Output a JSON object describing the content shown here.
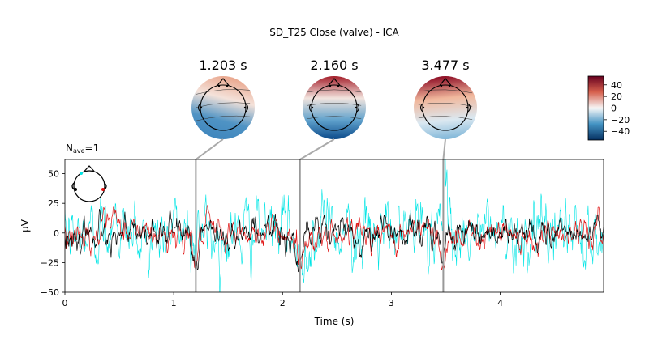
{
  "chart_data": {
    "type": "line",
    "title": "SD_T25 Close (valve) - ICA",
    "xlabel": "Time (s)",
    "ylabel": "μV",
    "xlim": [
      0,
      4.95
    ],
    "ylim": [
      -50,
      62
    ],
    "x_ticks": [
      0,
      1,
      2,
      3,
      4
    ],
    "y_ticks": [
      -50,
      -25,
      0,
      25,
      50
    ],
    "nave_label": "N",
    "nave_sub": "ave",
    "nave_value": "=1",
    "series_colors": {
      "cyan": "#00e5e5",
      "red": "#e01010",
      "black": "#000000"
    },
    "time_marks": [
      {
        "t": 1.203,
        "label": "1.203 s"
      },
      {
        "t": 2.16,
        "label": "2.160 s"
      },
      {
        "t": 3.477,
        "label": "3.477 s"
      }
    ],
    "events": [
      {
        "t": 1.203,
        "cyan": -18,
        "red": -28,
        "black": -25,
        "width": 0.035
      },
      {
        "t": 2.16,
        "cyan": -30,
        "red": -25,
        "black": -15,
        "width": 0.04
      },
      {
        "t": 3.477,
        "cyan": 52,
        "red": -30,
        "black": -12,
        "width": 0.03
      },
      {
        "t": 1.22,
        "cyan": 42,
        "red": 0,
        "black": 0,
        "width": 0.01
      },
      {
        "t": 0.45,
        "cyan": 25,
        "red": 12,
        "black": 10,
        "width": 0.02
      },
      {
        "t": 2.42,
        "cyan": 30,
        "red": -10,
        "black": -8,
        "width": 0.02
      }
    ],
    "colorbar": {
      "min": -55,
      "max": 55,
      "ticks": [
        40,
        20,
        0,
        -20,
        -40
      ],
      "tick_labels": [
        "40",
        "20",
        "0",
        "−20",
        "−40"
      ],
      "colors": [
        "#67001f",
        "#d6604d",
        "#f7f7f7",
        "#4393c3",
        "#053061"
      ]
    },
    "topomaps": [
      {
        "time": "1.203 s",
        "top": "#e9a48a",
        "upper": "#f4e2da",
        "lower": "#4f93c4",
        "bottom": "#3f86bd",
        "shift": 0.25
      },
      {
        "time": "2.160 s",
        "top": "#a51f2b",
        "upper": "#f2e4de",
        "lower": "#5fa1cc",
        "bottom": "#0b4a8a",
        "shift": 0.0
      },
      {
        "time": "3.477 s",
        "top": "#8e0c24",
        "upper": "#f1b89d",
        "lower": "#dbe8f1",
        "bottom": "#7fb6d8",
        "shift": -0.1
      }
    ],
    "sensor_legend": {
      "dots": [
        "cyan-dot",
        "black-dot",
        "red-dot"
      ]
    },
    "grid": false,
    "legend": "top-left"
  }
}
